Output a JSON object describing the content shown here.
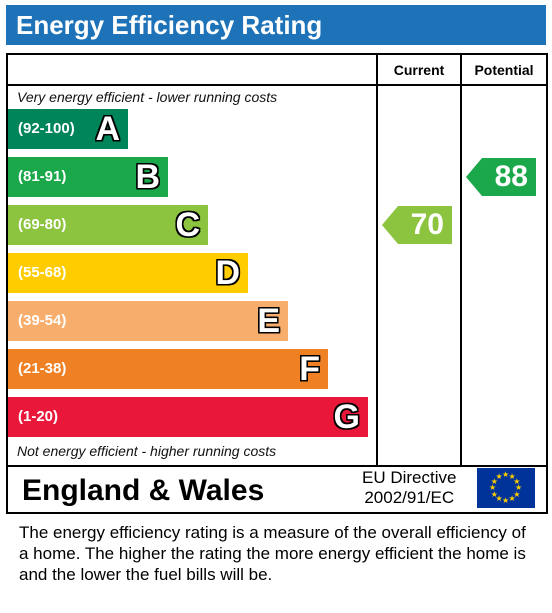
{
  "header": {
    "title": "Energy Efficiency Rating"
  },
  "columns": {
    "current": "Current",
    "potential": "Potential"
  },
  "notes": {
    "top": "Very energy efficient - lower running costs",
    "bottom": "Not energy efficient - higher running costs"
  },
  "chart_data": {
    "type": "bar",
    "title": "Energy Efficiency Rating",
    "categories": [
      "A",
      "B",
      "C",
      "D",
      "E",
      "F",
      "G"
    ],
    "ranges": [
      "(92-100)",
      "(81-91)",
      "(69-80)",
      "(55-68)",
      "(39-54)",
      "(21-38)",
      "(1-20)"
    ],
    "colors": [
      "#00855a",
      "#1aa84a",
      "#8cc43f",
      "#ffcc00",
      "#f7ad6b",
      "#ef8024",
      "#e9183a"
    ],
    "current": {
      "value": 70,
      "band": "C",
      "color": "#8cc43f"
    },
    "potential": {
      "value": 88,
      "band": "B",
      "color": "#1aa84a"
    }
  },
  "footer": {
    "region": "England & Wales",
    "directive_line1": "EU Directive",
    "directive_line2": "2002/91/EC"
  },
  "description": "The energy efficiency rating is a measure of the overall efficiency of a home.  The higher the rating the more energy efficient the home is and the lower the fuel bills will be."
}
